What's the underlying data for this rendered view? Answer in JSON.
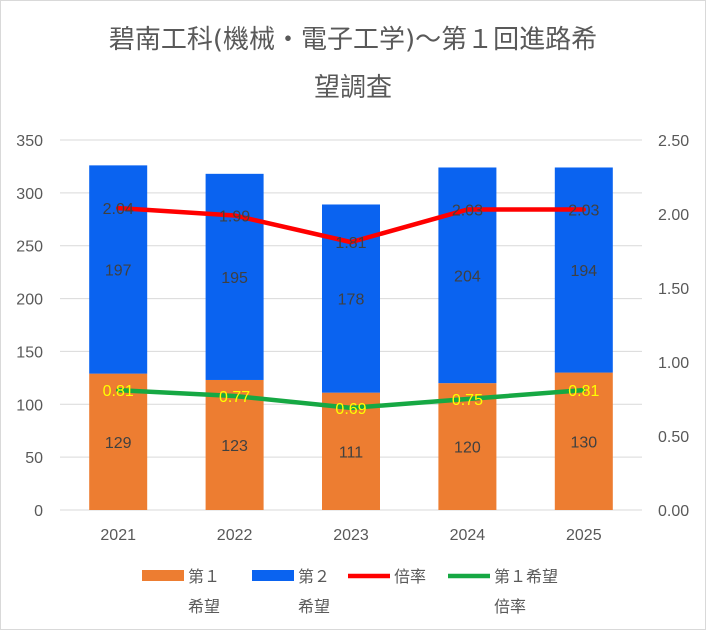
{
  "chart_data": {
    "type": "bar",
    "stacked": true,
    "title_lines": [
      "碧南工科(機械・電子工学)〜第１回進路希",
      "望調査"
    ],
    "categories": [
      "2021",
      "2022",
      "2023",
      "2024",
      "2025"
    ],
    "y_left": {
      "min": 0,
      "max": 350,
      "step": 50,
      "tick_labels": [
        "0",
        "50",
        "100",
        "150",
        "200",
        "250",
        "300",
        "350"
      ]
    },
    "y_right": {
      "min": 0,
      "max": 2.5,
      "step": 0.5,
      "tick_labels": [
        "0.00",
        "0.50",
        "1.00",
        "1.50",
        "2.00",
        "2.50"
      ]
    },
    "grid": true,
    "legend_position": "bottom",
    "series": [
      {
        "name": "第１希望",
        "legend_lines": [
          "第１",
          "希望"
        ],
        "kind": "bar",
        "axis": "left",
        "color": "#ed7d31",
        "label_color": "#404040",
        "values": [
          129,
          123,
          111,
          120,
          130
        ]
      },
      {
        "name": "第２希望",
        "legend_lines": [
          "第２",
          "希望"
        ],
        "kind": "bar",
        "axis": "left",
        "color": "#0a63f0",
        "label_color": "#404040",
        "values": [
          197,
          195,
          178,
          204,
          194
        ]
      },
      {
        "name": "倍率",
        "legend_lines": [
          "倍率"
        ],
        "kind": "line",
        "axis": "right",
        "color": "#ff0000",
        "label_color": "#404040",
        "values": [
          2.04,
          1.99,
          1.81,
          2.03,
          2.03
        ],
        "labels": [
          "2.04",
          "1.99",
          "1.81",
          "2.03",
          "2.03"
        ]
      },
      {
        "name": "第１希望倍率",
        "legend_lines": [
          "第１希望",
          "倍率"
        ],
        "kind": "line",
        "axis": "right",
        "color": "#16a843",
        "label_color": "#ffff00",
        "values": [
          0.81,
          0.77,
          0.69,
          0.75,
          0.81
        ],
        "labels": [
          "0.81",
          "0.77",
          "0.69",
          "0.75",
          "0.81"
        ]
      }
    ]
  }
}
